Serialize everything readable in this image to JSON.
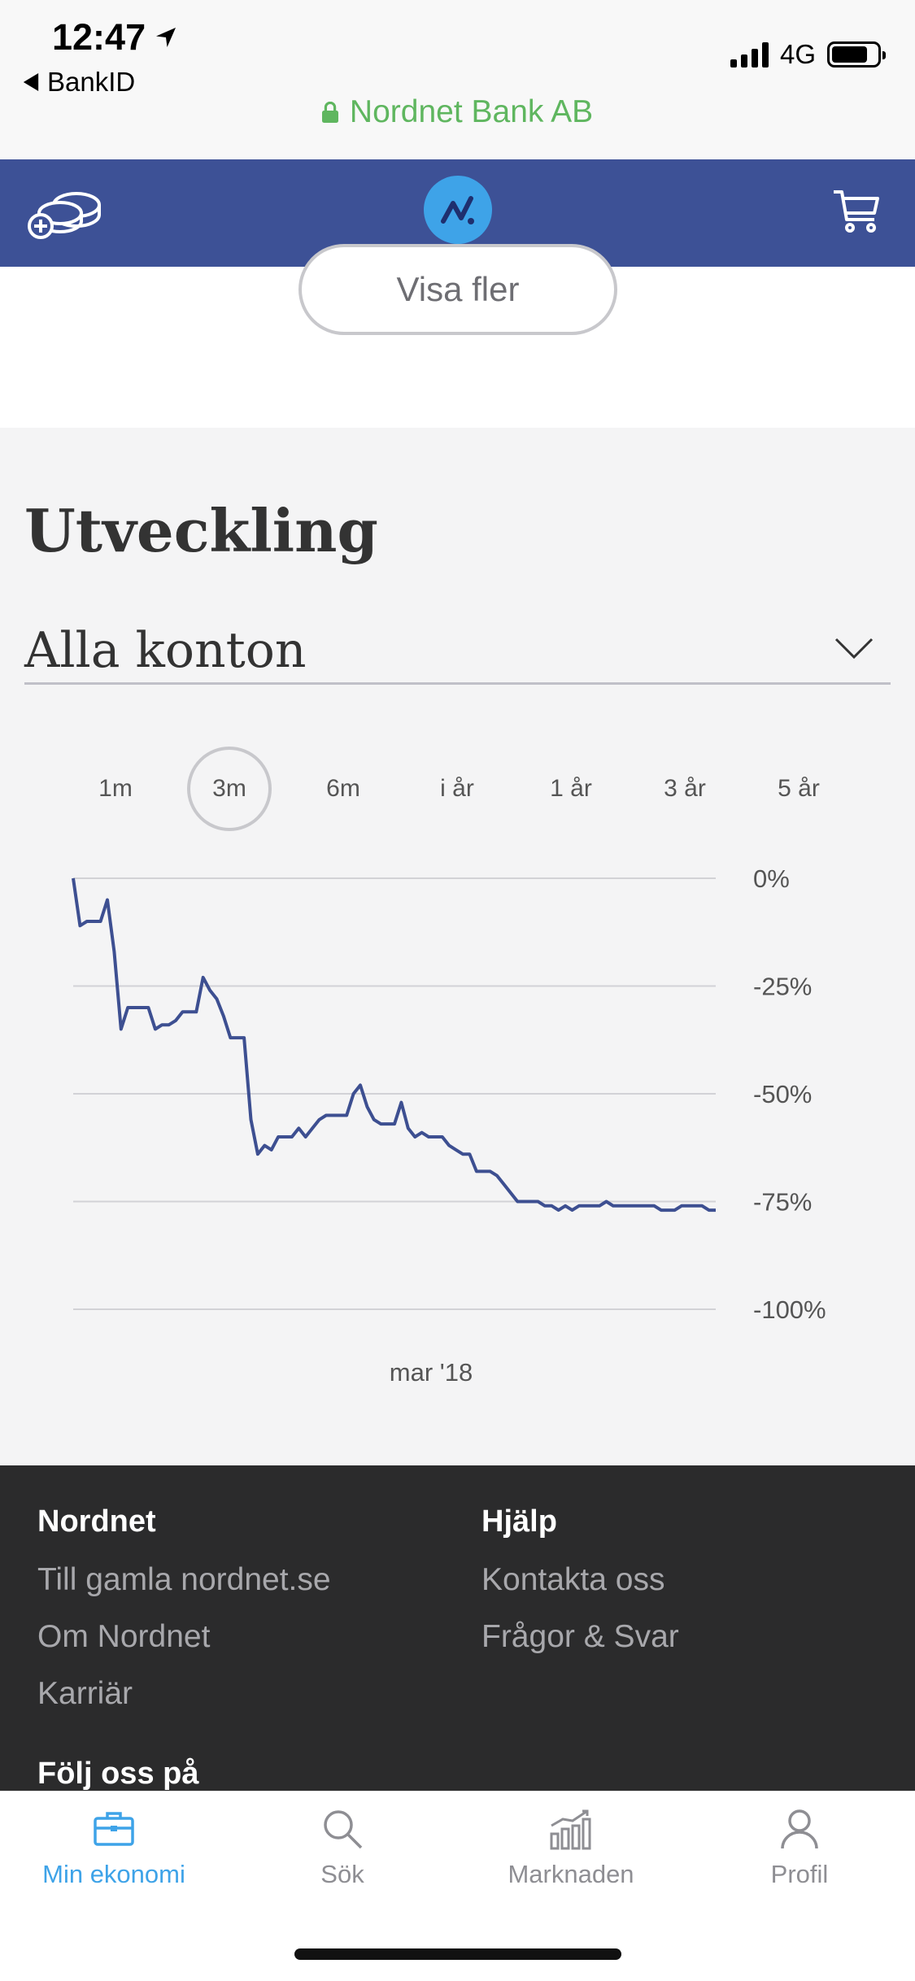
{
  "status": {
    "time": "12:47",
    "back_app": "BankID",
    "network": "4G",
    "url": "Nordnet Bank AB"
  },
  "content": {
    "show_more": "Visa fler",
    "section_title": "Utveckling",
    "account_select": "Alla konton",
    "periods": [
      "1m",
      "3m",
      "6m",
      "i år",
      "1 år",
      "3 år",
      "5 år"
    ],
    "active_period": "3m"
  },
  "chart_data": {
    "type": "line",
    "y_ticks": [
      "0%",
      "-25%",
      "-50%",
      "-75%",
      "-100%"
    ],
    "ylim": [
      -100,
      0
    ],
    "x_label": "mar '18",
    "color": "#3d4f91",
    "series": [
      {
        "values": [
          0,
          -11,
          -10,
          -10,
          -10,
          -5,
          -17,
          -35,
          -30,
          -30,
          -30,
          -30,
          -35,
          -34,
          -34,
          -33,
          -31,
          -31,
          -31,
          -23,
          -26,
          -28,
          -32,
          -37,
          -37,
          -37,
          -56,
          -64,
          -62,
          -63,
          -60,
          -60,
          -60,
          -58,
          -60,
          -58,
          -56,
          -55,
          -55,
          -55,
          -55,
          -50,
          -48,
          -53,
          -56,
          -57,
          -57,
          -57,
          -52,
          -58,
          -60,
          -59,
          -60,
          -60,
          -60,
          -62,
          -63,
          -64,
          -64,
          -68,
          -68,
          -68,
          -69,
          -71,
          -73,
          -75,
          -75,
          -75,
          -75,
          -76,
          -76,
          -77,
          -76,
          -77,
          -76,
          -76,
          -76,
          -76,
          -75,
          -76,
          -76,
          -76,
          -76,
          -76,
          -76,
          -76,
          -77,
          -77,
          -77,
          -76,
          -76,
          -76,
          -76,
          -77,
          -77
        ]
      }
    ]
  },
  "footer": {
    "col1_title": "Nordnet",
    "col1_links": [
      "Till gamla nordnet.se",
      "Om Nordnet",
      "Karriär"
    ],
    "col2_title": "Hjälp",
    "col2_links": [
      "Kontakta oss",
      "Frågor & Svar"
    ],
    "follow": "Följ oss på"
  },
  "tabs": [
    {
      "label": "Min ekonomi",
      "icon": "briefcase-icon",
      "active": true
    },
    {
      "label": "Sök",
      "icon": "search-icon",
      "active": false
    },
    {
      "label": "Marknaden",
      "icon": "market-chart-icon",
      "active": false
    },
    {
      "label": "Profil",
      "icon": "profile-icon",
      "active": false
    }
  ],
  "colors": {
    "nav": "#3d5196",
    "accent": "#3ea3e8",
    "secure": "#5fb65f",
    "footer": "#2b2b2c"
  }
}
